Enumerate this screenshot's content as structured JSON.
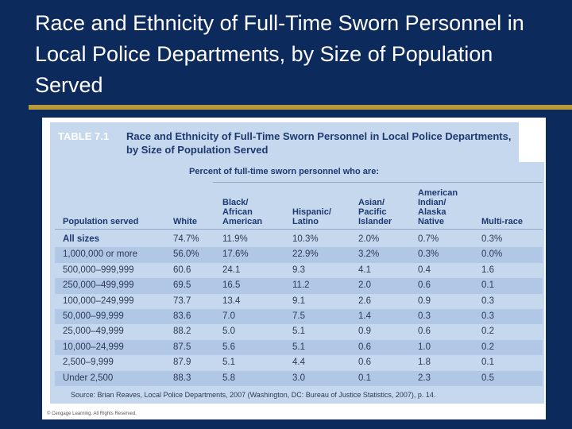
{
  "slide": {
    "title": "Race and Ethnicity of Full-Time Sworn Personnel in Local Police Departments, by Size of Population Served"
  },
  "figure": {
    "label": "TABLE 7.1",
    "caption": "Race and Ethnicity of Full-Time Sworn Personnel in Local Police Departments, by Size of Population Served",
    "span_header": "Percent of full-time sworn personnel who are:",
    "columns": [
      "Population served",
      "White",
      "Black/\nAfrican\nAmerican",
      "Hispanic/\nLatino",
      "Asian/\nPacific\nIslander",
      "American\nIndian/\nAlaska\nNative",
      "Multi-race"
    ],
    "rows": [
      [
        "All sizes",
        "74.7%",
        "11.9%",
        "10.3%",
        "2.0%",
        "0.7%",
        "0.3%"
      ],
      [
        "1,000,000 or more",
        "56.0%",
        "17.6%",
        "22.9%",
        "3.2%",
        "0.3%",
        "0.0%"
      ],
      [
        "500,000–999,999",
        "60.6",
        "24.1",
        "9.3",
        "4.1",
        "0.4",
        "1.6"
      ],
      [
        "250,000–499,999",
        "69.5",
        "16.5",
        "11.2",
        "2.0",
        "0.6",
        "0.1"
      ],
      [
        "100,000–249,999",
        "73.7",
        "13.4",
        "9.1",
        "2.6",
        "0.9",
        "0.3"
      ],
      [
        "50,000–99,999",
        "83.6",
        "7.0",
        "7.5",
        "1.4",
        "0.3",
        "0.3"
      ],
      [
        "25,000–49,999",
        "88.2",
        "5.0",
        "5.1",
        "0.9",
        "0.6",
        "0.2"
      ],
      [
        "10,000–24,999",
        "87.5",
        "5.6",
        "5.1",
        "0.6",
        "1.0",
        "0.2"
      ],
      [
        "2,500–9,999",
        "87.9",
        "5.1",
        "4.4",
        "0.6",
        "1.8",
        "0.1"
      ],
      [
        "Under 2,500",
        "88.3",
        "5.8",
        "3.0",
        "0.1",
        "2.3",
        "0.5"
      ]
    ],
    "source": "Source: Brian Reaves, Local Police Departments, 2007 (Washington, DC: Bureau of Justice Statistics, 2007), p. 14.",
    "copyright": "© Cengage Learning. All Rights Reserved."
  },
  "colors": {
    "background": "#0d2a5c",
    "rule": "#b89a3a",
    "panel": "#c5d8ee",
    "heading_text": "#1d3970"
  }
}
